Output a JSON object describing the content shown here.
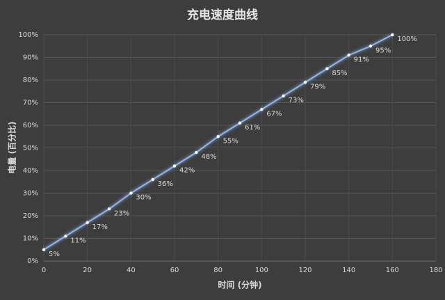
{
  "chart_data": {
    "type": "line",
    "title": "充电速度曲线",
    "x_label": "时间 (分钟)",
    "y_label": "电量 (百分比)",
    "x": [
      0,
      10,
      20,
      30,
      40,
      50,
      60,
      70,
      80,
      90,
      100,
      110,
      120,
      130,
      140,
      150,
      160
    ],
    "series": [
      {
        "name": "电量",
        "color": "#8fb6ee",
        "values": [
          5,
          11,
          17,
          23,
          30,
          36,
          42,
          48,
          55,
          61,
          67,
          73,
          79,
          85,
          91,
          95,
          100
        ],
        "value_labels": [
          "5%",
          "11%",
          "17%",
          "23%",
          "30%",
          "36%",
          "42%",
          "48%",
          "55%",
          "61%",
          "67%",
          "73%",
          "79%",
          "85%",
          "91%",
          "95%",
          "100%"
        ]
      }
    ],
    "xlim": [
      0,
      180
    ],
    "xticks": [
      0,
      20,
      40,
      60,
      80,
      100,
      120,
      140,
      160,
      180
    ],
    "ylim": [
      0,
      100
    ],
    "yticks": [
      {
        "value": 0,
        "label": "0%"
      },
      {
        "value": 10,
        "label": "10%"
      },
      {
        "value": 20,
        "label": "20%"
      },
      {
        "value": 30,
        "label": "30%"
      },
      {
        "value": 40,
        "label": "40%"
      },
      {
        "value": 50,
        "label": "50%"
      },
      {
        "value": 60,
        "label": "60%"
      },
      {
        "value": 70,
        "label": "70%"
      },
      {
        "value": 80,
        "label": "80%"
      },
      {
        "value": 90,
        "label": "90%"
      },
      {
        "value": 100,
        "label": "100%"
      }
    ],
    "grid": true
  }
}
